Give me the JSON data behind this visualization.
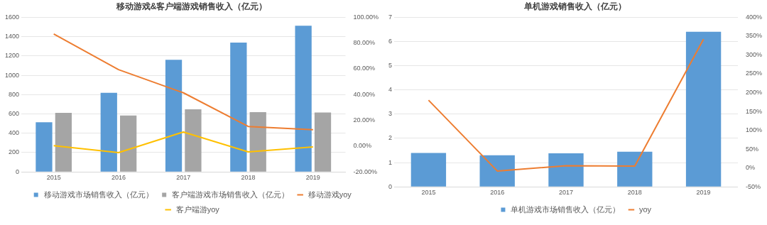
{
  "chart_data": [
    {
      "type": "bar",
      "title": "移动游戏&客户端游戏销售收入（亿元）",
      "categories": [
        "2015",
        "2016",
        "2017",
        "2018",
        "2019"
      ],
      "series": [
        {
          "name": "移动游戏市场销售收入（亿元）",
          "color": "#5b9bd5",
          "values": [
            514,
            819,
            1161,
            1339,
            1513
          ]
        },
        {
          "name": "客户端游戏市场销售收入（亿元）",
          "color": "#a5a5a5",
          "values": [
            611,
            583,
            648,
            619,
            615
          ]
        },
        {
          "name": "移动游戏yoy",
          "type": "line",
          "axis": "y2",
          "color": "#ed7d31",
          "values": [
            87,
            59.4,
            41.4,
            15.3,
            12.7
          ]
        },
        {
          "name": "客户端游yoy",
          "type": "line",
          "axis": "y2",
          "color": "#ffc000",
          "values": [
            0.4,
            -5,
            11,
            -4.5,
            -0.6
          ]
        }
      ],
      "ylim": [
        0,
        1600
      ],
      "yticks": [
        0,
        200,
        400,
        600,
        800,
        1000,
        1200,
        1400,
        1600
      ],
      "y2lim": [
        -20,
        100
      ],
      "y2ticks": [
        {
          "value": -20,
          "label": "-20.00%"
        },
        {
          "value": 0,
          "label": "0.00%"
        },
        {
          "value": 20,
          "label": "20.00%"
        },
        {
          "value": 40,
          "label": "40.00%"
        },
        {
          "value": 60,
          "label": "60.00%"
        },
        {
          "value": 80,
          "label": "80.00%"
        },
        {
          "value": 100,
          "label": "100.00%"
        }
      ],
      "grid": "y",
      "legend": "bottom",
      "marker": "none",
      "line_style": "solid"
    },
    {
      "type": "bar",
      "title": "单机游戏销售收入（亿元）",
      "categories": [
        "2015",
        "2016",
        "2017",
        "2018",
        "2019"
      ],
      "series": [
        {
          "name": "单机游戏市场销售收入（亿元）",
          "color": "#5b9bd5",
          "values": [
            1.4,
            1.3,
            1.38,
            1.45,
            6.4
          ]
        },
        {
          "name": "yoy",
          "type": "line",
          "axis": "y2",
          "color": "#ed7d31",
          "values": [
            180,
            -8,
            6,
            5,
            342
          ]
        }
      ],
      "ylim": [
        0,
        7
      ],
      "yticks": [
        0,
        1,
        2,
        3,
        4,
        5,
        6,
        7
      ],
      "y2lim": [
        -50,
        400
      ],
      "y2ticks": [
        {
          "value": -50,
          "label": "-50%"
        },
        {
          "value": 0,
          "label": "0%"
        },
        {
          "value": 50,
          "label": "50%"
        },
        {
          "value": 100,
          "label": "100%"
        },
        {
          "value": 150,
          "label": "150%"
        },
        {
          "value": 200,
          "label": "200%"
        },
        {
          "value": 250,
          "label": "250%"
        },
        {
          "value": 300,
          "label": "300%"
        },
        {
          "value": 350,
          "label": "350%"
        },
        {
          "value": 400,
          "label": "400%"
        }
      ],
      "grid": "y",
      "legend": "bottom",
      "marker": "none",
      "line_style": "solid"
    }
  ]
}
